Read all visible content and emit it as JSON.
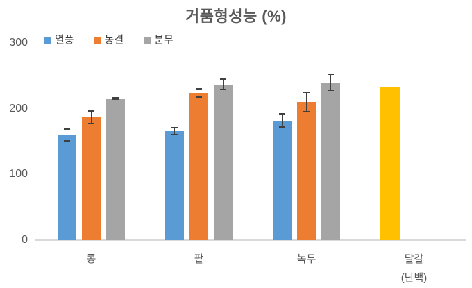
{
  "chart_data": {
    "type": "bar",
    "title": "거품형성능 (%)",
    "categories": [
      "콩",
      "팥",
      "녹두",
      "달걀 (난백)"
    ],
    "category_labels": [
      [
        "콩"
      ],
      [
        "팥"
      ],
      [
        "녹두"
      ],
      [
        "달걀",
        "(난백)"
      ]
    ],
    "series": [
      {
        "name": "열풍",
        "color": "#5B9BD5",
        "values": [
          160,
          166,
          182,
          null
        ],
        "errors": [
          10,
          6,
          11,
          null
        ]
      },
      {
        "name": "동결",
        "color": "#ED7D31",
        "values": [
          187,
          224,
          210,
          null
        ],
        "errors": [
          11,
          7,
          16,
          null
        ]
      },
      {
        "name": "분무",
        "color": "#A5A5A5",
        "values": [
          216,
          237,
          240,
          null
        ],
        "errors": [
          2,
          9,
          13,
          null
        ]
      }
    ],
    "single_bar": {
      "category": "달걀 (난백)",
      "value": 232,
      "color": "#FFC000",
      "error": null
    },
    "ylim": [
      0,
      300
    ],
    "yticks": [
      300,
      200,
      100,
      0
    ],
    "grid": false,
    "legend_position": "top-left",
    "error_bars": true,
    "colors": {
      "axis_line": "#D9D9D9",
      "error_bar": "#404040",
      "title_text": "#595959",
      "axis_text": "#595959",
      "legend_text": "#404040"
    }
  }
}
